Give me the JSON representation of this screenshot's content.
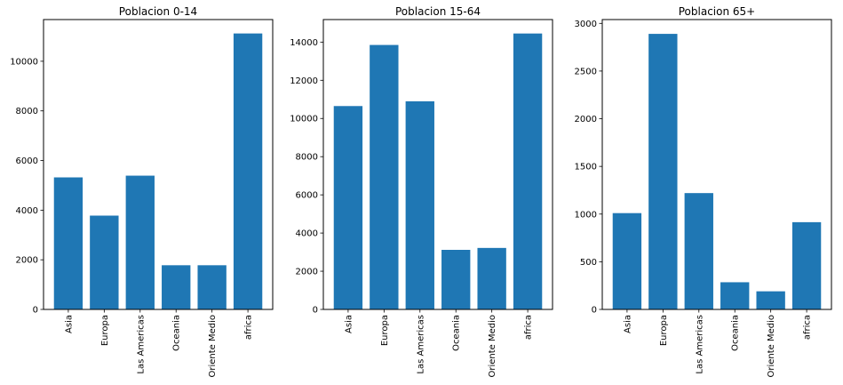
{
  "colors": {
    "bar": "#1f77b4",
    "axis": "#000000",
    "background": "#ffffff"
  },
  "chart_data": [
    {
      "type": "bar",
      "title": "Poblacion 0-14",
      "categories": [
        "Asia",
        "Europa",
        "Las Americas",
        "Oceania",
        "Oriente Medio",
        "africa"
      ],
      "values": [
        5320,
        3780,
        5390,
        1780,
        1780,
        11120
      ],
      "yticks": [
        0,
        2000,
        4000,
        6000,
        8000,
        10000
      ],
      "ylim": [
        0,
        11680
      ],
      "xlabel": "",
      "ylabel": "",
      "grid": false
    },
    {
      "type": "bar",
      "title": "Poblacion 15-64",
      "categories": [
        "Asia",
        "Europa",
        "Las Americas",
        "Oceania",
        "Oriente Medio",
        "africa"
      ],
      "values": [
        10650,
        13850,
        10900,
        3120,
        3220,
        14450
      ],
      "yticks": [
        0,
        2000,
        4000,
        6000,
        8000,
        10000,
        12000,
        14000
      ],
      "ylim": [
        0,
        15180
      ],
      "xlabel": "",
      "ylabel": "",
      "grid": false
    },
    {
      "type": "bar",
      "title": "Poblacion 65+",
      "categories": [
        "Asia",
        "Europa",
        "Las Americas",
        "Oceania",
        "Oriente Medio",
        "africa"
      ],
      "values": [
        1010,
        2890,
        1220,
        285,
        190,
        915
      ],
      "yticks": [
        0,
        500,
        1000,
        1500,
        2000,
        2500,
        3000
      ],
      "ylim": [
        0,
        3040
      ],
      "xlabel": "",
      "ylabel": "",
      "grid": false
    }
  ]
}
